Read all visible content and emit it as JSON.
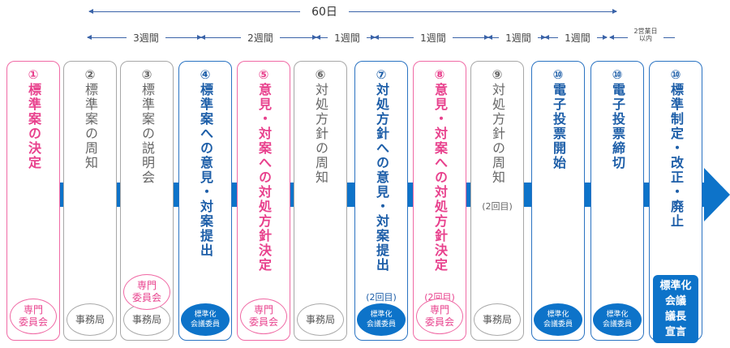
{
  "timeline": {
    "total": "60日",
    "segments": [
      "3週間",
      "2週間",
      "1週間",
      "1週間",
      "1週間",
      "1週間"
    ],
    "last_segment": [
      "2営業日",
      "以内"
    ]
  },
  "steps": [
    {
      "num": "①",
      "text": "標準案の決定",
      "badge": [
        "専門",
        "委員会"
      ]
    },
    {
      "num": "②",
      "text": "標準案の周知",
      "badge": [
        "事務局"
      ]
    },
    {
      "num": "③",
      "text": "標準案の説明会",
      "badge": [
        "事務局"
      ],
      "extra_badge": [
        "専門",
        "委員会"
      ]
    },
    {
      "num": "④",
      "text": "標準案への意見・対案提出",
      "badge": [
        "標準化",
        "会議委員"
      ]
    },
    {
      "num": "⑤",
      "text": "意見・対案への対処方針決定",
      "badge": [
        "専門",
        "委員会"
      ]
    },
    {
      "num": "⑥",
      "text": "対処方針の周知",
      "badge": [
        "事務局"
      ]
    },
    {
      "num": "⑦",
      "text": "対処方針への意見・対案提出",
      "sub": "(2回目)",
      "badge": [
        "標準化",
        "会議委員"
      ]
    },
    {
      "num": "⑧",
      "text": "意見・対案への対処方針決定",
      "sub": "(2回目)",
      "badge": [
        "専門",
        "委員会"
      ]
    },
    {
      "num": "⑨",
      "text": "対処方針の周知",
      "sub": "(2回目)",
      "badge": [
        "事務局"
      ]
    },
    {
      "num": "⑩",
      "text": "電子投票開始",
      "badge": [
        "標準化",
        "会議委員"
      ]
    },
    {
      "num": "⑩",
      "text": "電子投票締切",
      "badge": [
        "標準化",
        "会議委員"
      ]
    },
    {
      "num": "⑩",
      "text": "標準制定・改正・廃止",
      "badge": [
        "標準化",
        "会議",
        "議長",
        "宣言"
      ]
    }
  ]
}
